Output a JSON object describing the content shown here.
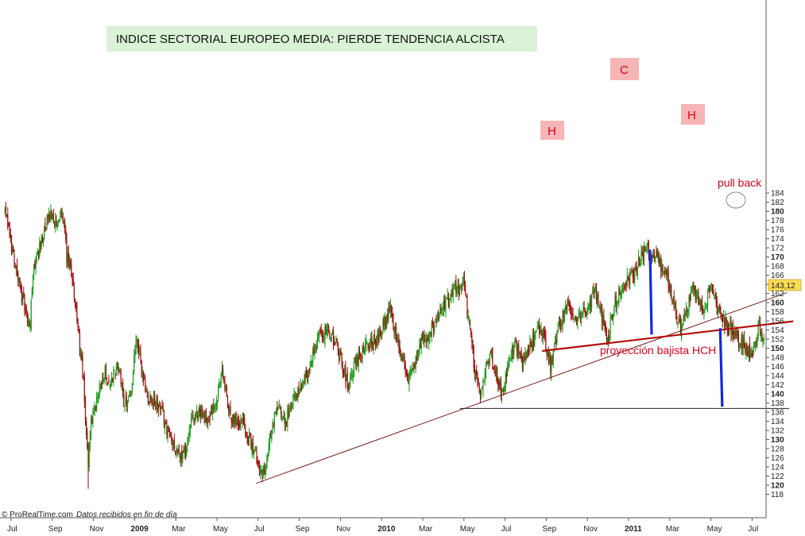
{
  "chart_data": {
    "type": "candlestick",
    "title": "INDICE SECTORIAL EUROPEO MEDIA: PIERDE TENDENCIA ALCISTA",
    "last_value": "143,12",
    "ylim": [
      117,
      185
    ],
    "y_ticks": [
      118,
      120,
      122,
      124,
      126,
      128,
      130,
      132,
      134,
      136,
      138,
      140,
      142,
      144,
      146,
      148,
      150,
      152,
      154,
      156,
      158,
      160,
      162,
      164,
      166,
      168,
      170,
      172,
      174,
      176,
      178,
      180,
      182,
      184
    ],
    "y_bold_ticks": [
      120,
      130,
      140,
      150,
      160,
      170,
      180
    ],
    "x_ticks": [
      {
        "label": "Jul",
        "t": 0,
        "bold": false
      },
      {
        "label": "Sep",
        "t": 2,
        "bold": false
      },
      {
        "label": "Nov",
        "t": 4,
        "bold": false
      },
      {
        "label": "2009",
        "t": 6,
        "bold": true
      },
      {
        "label": "Mar",
        "t": 8,
        "bold": false
      },
      {
        "label": "May",
        "t": 10,
        "bold": false
      },
      {
        "label": "Jul",
        "t": 12,
        "bold": false
      },
      {
        "label": "Sep",
        "t": 14,
        "bold": false
      },
      {
        "label": "Nov",
        "t": 16,
        "bold": false
      },
      {
        "label": "2010",
        "t": 18,
        "bold": true
      },
      {
        "label": "Mar",
        "t": 20,
        "bold": false
      },
      {
        "label": "May",
        "t": 22,
        "bold": false
      },
      {
        "label": "Jul",
        "t": 24,
        "bold": false
      },
      {
        "label": "Sep",
        "t": 26,
        "bold": false
      },
      {
        "label": "Nov",
        "t": 28,
        "bold": false
      },
      {
        "label": "2011",
        "t": 30,
        "bold": true
      },
      {
        "label": "Mar",
        "t": 32,
        "bold": false
      },
      {
        "label": "May",
        "t": 34,
        "bold": false
      },
      {
        "label": "Jul",
        "t": 36,
        "bold": false
      }
    ],
    "anchors": [
      [
        -0.3,
        180
      ],
      [
        0.3,
        166
      ],
      [
        0.6,
        160
      ],
      [
        0.9,
        154
      ],
      [
        1.1,
        168
      ],
      [
        1.4,
        172
      ],
      [
        1.7,
        177
      ],
      [
        2.0,
        180
      ],
      [
        2.2,
        176
      ],
      [
        2.5,
        180
      ],
      [
        2.7,
        170
      ],
      [
        3.0,
        165
      ],
      [
        3.2,
        156
      ],
      [
        3.5,
        143
      ],
      [
        3.75,
        124
      ],
      [
        3.85,
        134
      ],
      [
        4.0,
        134
      ],
      [
        4.3,
        142
      ],
      [
        4.6,
        145
      ],
      [
        4.8,
        142
      ],
      [
        5.2,
        146
      ],
      [
        5.5,
        138
      ],
      [
        5.8,
        140
      ],
      [
        6.1,
        152
      ],
      [
        6.3,
        146
      ],
      [
        6.6,
        140
      ],
      [
        7.0,
        138
      ],
      [
        7.3,
        136
      ],
      [
        7.6,
        132
      ],
      [
        7.9,
        129
      ],
      [
        8.2,
        126
      ],
      [
        8.5,
        128
      ],
      [
        8.8,
        134
      ],
      [
        9.2,
        136
      ],
      [
        9.6,
        134
      ],
      [
        10.0,
        138
      ],
      [
        10.25,
        146
      ],
      [
        10.4,
        141
      ],
      [
        10.6,
        136
      ],
      [
        11.0,
        134
      ],
      [
        11.3,
        134
      ],
      [
        11.5,
        130
      ],
      [
        11.8,
        128
      ],
      [
        12.1,
        123
      ],
      [
        12.3,
        124
      ],
      [
        12.5,
        128
      ],
      [
        12.8,
        135
      ],
      [
        13.0,
        137
      ],
      [
        13.3,
        133
      ],
      [
        13.6,
        138
      ],
      [
        14.0,
        141
      ],
      [
        14.5,
        146
      ],
      [
        15.0,
        153
      ],
      [
        15.4,
        154
      ],
      [
        15.8,
        151
      ],
      [
        16.1,
        146
      ],
      [
        16.4,
        142
      ],
      [
        16.8,
        148
      ],
      [
        17.2,
        150
      ],
      [
        17.6,
        151
      ],
      [
        18.0,
        154
      ],
      [
        18.4,
        159
      ],
      [
        18.7,
        153
      ],
      [
        19.0,
        148
      ],
      [
        19.3,
        144
      ],
      [
        19.7,
        148
      ],
      [
        20.0,
        152
      ],
      [
        20.4,
        154
      ],
      [
        20.8,
        158
      ],
      [
        21.2,
        160
      ],
      [
        21.6,
        163
      ],
      [
        22.0,
        164
      ],
      [
        22.2,
        157
      ],
      [
        22.4,
        150
      ],
      [
        22.6,
        143
      ],
      [
        22.8,
        139
      ],
      [
        23.1,
        146
      ],
      [
        23.3,
        149
      ],
      [
        23.6,
        144
      ],
      [
        23.9,
        140
      ],
      [
        24.2,
        148
      ],
      [
        24.5,
        152
      ],
      [
        24.8,
        146
      ],
      [
        25.1,
        150
      ],
      [
        25.4,
        152
      ],
      [
        25.7,
        155
      ],
      [
        26.0,
        150
      ],
      [
        26.2,
        146
      ],
      [
        26.5,
        152
      ],
      [
        26.8,
        158
      ],
      [
        27.1,
        159
      ],
      [
        27.4,
        156
      ],
      [
        27.8,
        158
      ],
      [
        28.1,
        160
      ],
      [
        28.4,
        162
      ],
      [
        28.7,
        157
      ],
      [
        29.0,
        152
      ],
      [
        29.3,
        160
      ],
      [
        29.7,
        163
      ],
      [
        30.0,
        165
      ],
      [
        30.3,
        167
      ],
      [
        30.6,
        170
      ],
      [
        30.9,
        172
      ],
      [
        31.1,
        170
      ],
      [
        31.3,
        171
      ],
      [
        31.6,
        168
      ],
      [
        31.9,
        165
      ],
      [
        32.2,
        160
      ],
      [
        32.5,
        154
      ],
      [
        32.8,
        158
      ],
      [
        33.1,
        164
      ],
      [
        33.4,
        160
      ],
      [
        33.7,
        158
      ],
      [
        34.0,
        165
      ],
      [
        34.3,
        159
      ],
      [
        34.5,
        157
      ],
      [
        34.8,
        155
      ],
      [
        35.1,
        154
      ],
      [
        35.3,
        152
      ],
      [
        35.6,
        151
      ],
      [
        35.9,
        149
      ],
      [
        36.1,
        150
      ],
      [
        36.3,
        155
      ],
      [
        36.6,
        151
      ],
      [
        36.9,
        147
      ],
      [
        37.1,
        144
      ],
      [
        37.3,
        143.12
      ]
    ],
    "annotations": {
      "label_h1": "H",
      "label_c": "C",
      "label_h2": "H",
      "pull_back": "pull back",
      "projection": "proyección bajista HCH"
    },
    "lines": {
      "uptrend": [
        [
          11.9,
          120.4
        ],
        [
          37.7,
          162.2
        ]
      ],
      "neckline": [
        [
          25.8,
          149.4
        ],
        [
          38.0,
          155.9
        ]
      ],
      "projection_level": [
        [
          21.8,
          136.8
        ],
        [
          37.8,
          136.8
        ]
      ],
      "head_height": [
        [
          31.04,
          171.6
        ],
        [
          31.12,
          153.0
        ]
      ],
      "projection_drop": [
        [
          34.45,
          154.4
        ],
        [
          34.55,
          137.2
        ]
      ]
    }
  },
  "footer": {
    "source": "© ProRealTime.com",
    "note": "Datos recibidos en fin de día"
  },
  "colors": {
    "up": "#1a9a1a",
    "down": "#9b0d0d",
    "trendline": "#7a1f1f",
    "neckline": "#b20e0e",
    "projection_bar": "#1428e0",
    "title_bg": "#daf2d6",
    "label_bg": "#f7b5b5",
    "last_value_bg": "#ffdd55"
  }
}
